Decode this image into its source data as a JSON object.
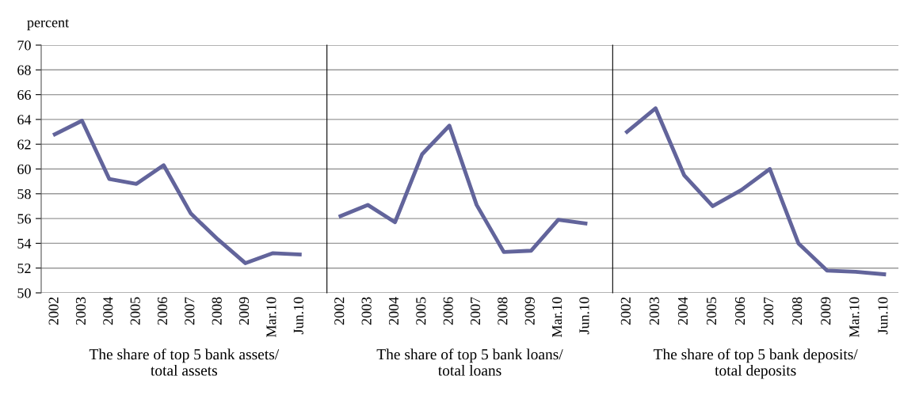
{
  "chart_data": [
    {
      "type": "line",
      "ylabel": "percent",
      "xlabel": "The share of top 5 bank assets/\ntotal assets",
      "categories": [
        "2002",
        "2003",
        "2004",
        "2005",
        "2006",
        "2007",
        "2008",
        "2009",
        "Mar.10",
        "Jun.10"
      ],
      "series": [
        {
          "color": "#62649b",
          "values": [
            62.8,
            63.9,
            59.2,
            58.8,
            60.3,
            56.4,
            54.3,
            52.4,
            53.2,
            53.1
          ]
        }
      ],
      "ylim": [
        50,
        70
      ],
      "yticks": [
        50,
        52,
        54,
        56,
        58,
        60,
        62,
        64,
        66,
        68,
        70
      ],
      "grid": "y",
      "marker": "none",
      "line_style": "solid"
    },
    {
      "type": "line",
      "xlabel": "The share of top 5 bank loans/\ntotal loans",
      "categories": [
        "2002",
        "2003",
        "2004",
        "2005",
        "2006",
        "2007",
        "2008",
        "2009",
        "Mar.10",
        "Jun.10"
      ],
      "series": [
        {
          "color": "#62649b",
          "values": [
            56.2,
            57.1,
            55.7,
            61.2,
            63.5,
            57.1,
            53.3,
            53.4,
            55.9,
            55.6
          ]
        }
      ],
      "ylim": [
        50,
        70
      ],
      "yticks": [
        50,
        52,
        54,
        56,
        58,
        60,
        62,
        64,
        66,
        68,
        70
      ],
      "grid": "y",
      "marker": "none",
      "line_style": "solid",
      "tick_labels": "x"
    },
    {
      "type": "line",
      "xlabel": "The share of top 5 bank deposits/\ntotal deposits",
      "categories": [
        "2002",
        "2003",
        "2004",
        "2005",
        "2006",
        "2007",
        "2008",
        "2009",
        "Mar.10",
        "Jun.10"
      ],
      "series": [
        {
          "color": "#62649b",
          "values": [
            63.0,
            64.9,
            59.5,
            57.0,
            58.3,
            60.0,
            54.0,
            51.8,
            51.7,
            51.5
          ]
        }
      ],
      "ylim": [
        50,
        70
      ],
      "yticks": [
        50,
        52,
        54,
        56,
        58,
        60,
        62,
        64,
        66,
        68,
        70
      ],
      "grid": "y",
      "marker": "none",
      "line_style": "solid",
      "tick_labels": "x"
    }
  ]
}
